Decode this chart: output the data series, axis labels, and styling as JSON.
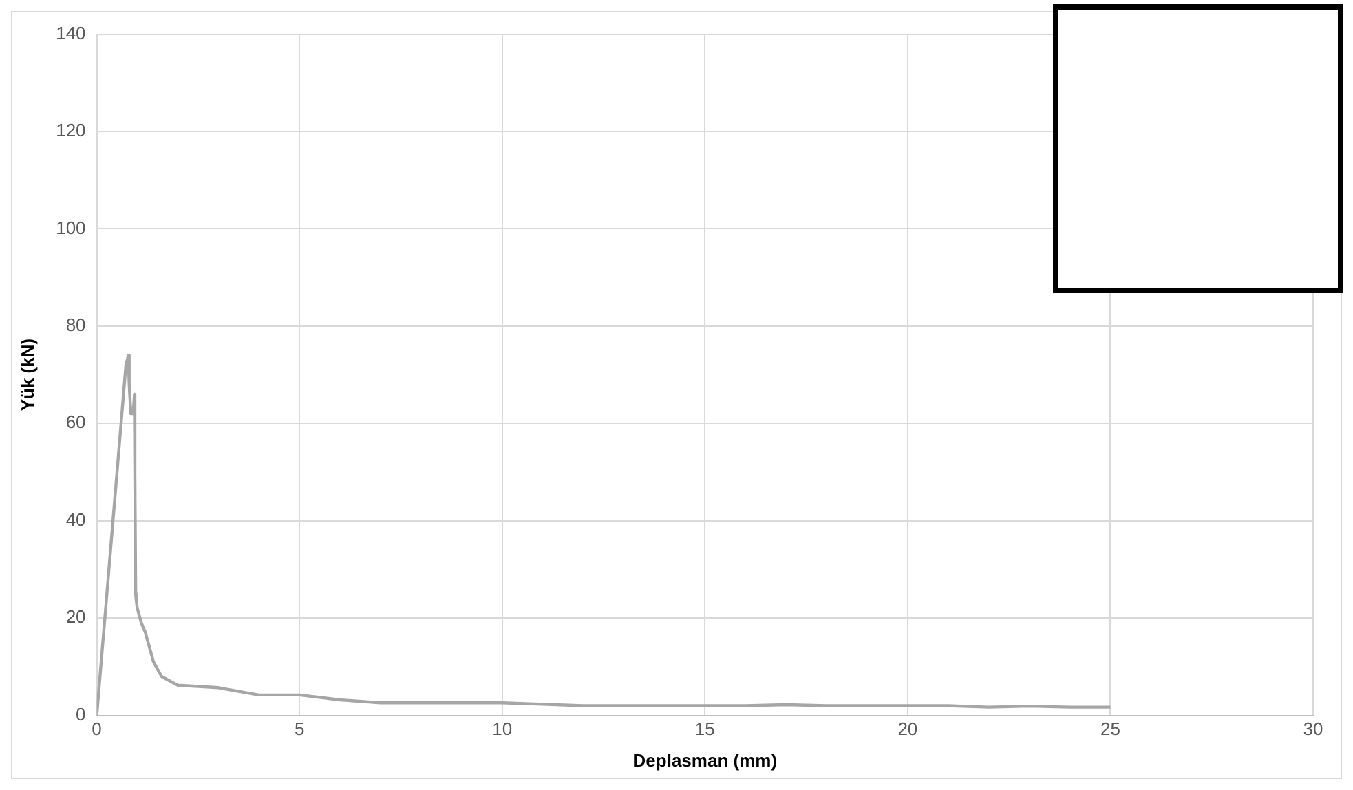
{
  "chart_data": {
    "type": "line",
    "xlabel": "Deplasman (mm)",
    "ylabel": "Yük (kN)",
    "series": [
      {
        "color": "#a6a6a6",
        "x": [
          0,
          0.2,
          0.4,
          0.6,
          0.72,
          0.78,
          0.8,
          0.84,
          0.86,
          0.9,
          0.93,
          0.94,
          0.96,
          0.97,
          1.0,
          1.1,
          1.2,
          1.3,
          1.4,
          1.6,
          2,
          3,
          4,
          5,
          6,
          7,
          8,
          10,
          12,
          14,
          16,
          17,
          18,
          20,
          21,
          22,
          23,
          24,
          25
        ],
        "values": [
          0,
          20,
          40,
          60,
          72,
          74,
          68,
          62,
          63,
          62,
          66,
          50,
          25,
          24,
          22,
          19,
          17,
          14,
          11,
          8,
          6.2,
          5.7,
          4.2,
          4.2,
          3.2,
          2.6,
          2.6,
          2.6,
          2,
          2,
          2,
          2.2,
          2,
          2,
          2,
          1.7,
          1.9,
          1.7,
          1.7
        ]
      }
    ],
    "xlim": [
      0,
      30
    ],
    "xticks": [
      0,
      5,
      10,
      15,
      20,
      25,
      30
    ],
    "ylim": [
      0,
      140
    ],
    "yticks": [
      0,
      20,
      40,
      60,
      80,
      100,
      120,
      140
    ],
    "grid": true,
    "legend": false,
    "marker": "none",
    "line_style": "solid"
  }
}
